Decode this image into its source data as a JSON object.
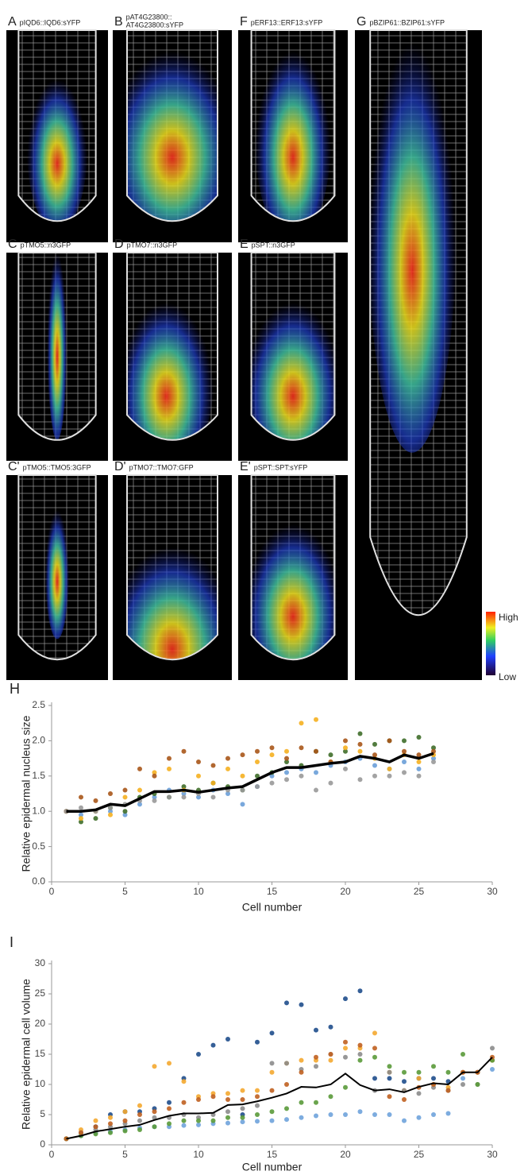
{
  "panels": [
    {
      "letter": "A",
      "caption": [
        "pIQD6::IQD6:sYFP"
      ]
    },
    {
      "letter": "B",
      "caption": [
        "pAT4G23800::",
        "AT4G23800:sYFP"
      ]
    },
    {
      "letter": "F",
      "caption": [
        "pERF13::ERF13:sYFP"
      ]
    },
    {
      "letter": "G",
      "caption": [
        "pBZIP61::BZIP61:sYFP"
      ]
    },
    {
      "letter": "C",
      "caption": [
        "pTMO5::n3GFP"
      ]
    },
    {
      "letter": "D",
      "caption": [
        "pTMO7::n3GFP"
      ]
    },
    {
      "letter": "E",
      "caption": [
        "pSPT::n3GFP"
      ]
    },
    {
      "letter": "C'",
      "caption": [
        "pTMO5::TMO5:3GFP"
      ]
    },
    {
      "letter": "D'",
      "caption": [
        "pTMO7::TMO7:GFP"
      ]
    },
    {
      "letter": "E'",
      "caption": [
        "pSPT::SPT:sYFP"
      ]
    }
  ],
  "colorbar": {
    "high": "High",
    "low": "Low"
  },
  "chart_data": [
    {
      "type": "scatter",
      "label": "H",
      "xlabel": "Cell number",
      "ylabel": "Relative epidermal nucleus size",
      "xlim": [
        0,
        30
      ],
      "ylim": [
        0,
        2.5
      ],
      "xticks": [
        0,
        5,
        10,
        15,
        20,
        25,
        30
      ],
      "yticks": [
        {
          "value": 0,
          "label": "0.0"
        },
        0.5,
        {
          "value": 1,
          "label": "1.0"
        },
        1.5,
        {
          "value": 2,
          "label": "2.0"
        },
        2.5
      ],
      "series": [
        {
          "color": "#6a9fd8",
          "x": [
            1,
            2,
            3,
            4,
            5,
            6,
            7,
            8,
            9,
            10,
            11,
            12,
            13,
            14,
            15,
            16,
            17,
            18,
            19,
            20,
            21,
            22,
            23,
            24,
            25,
            26
          ],
          "values": [
            1.0,
            0.95,
            1.0,
            1.0,
            0.95,
            1.1,
            1.2,
            1.3,
            1.25,
            1.2,
            1.3,
            1.25,
            1.1,
            1.35,
            1.5,
            1.55,
            1.6,
            1.55,
            1.65,
            1.7,
            1.75,
            1.65,
            1.6,
            1.7,
            1.6,
            1.75
          ]
        },
        {
          "color": "#3f6e2a",
          "x": [
            1,
            2,
            3,
            4,
            5,
            6,
            7,
            8,
            9,
            10,
            11,
            12,
            13,
            14,
            15,
            16,
            17,
            18,
            19,
            20,
            21,
            22,
            23,
            24,
            25,
            26
          ],
          "values": [
            1.0,
            0.85,
            0.9,
            1.05,
            1.0,
            1.2,
            1.25,
            1.2,
            1.35,
            1.3,
            1.4,
            1.35,
            1.3,
            1.5,
            1.55,
            1.7,
            1.65,
            1.85,
            1.8,
            1.85,
            2.1,
            1.95,
            2.0,
            2.0,
            2.05,
            1.9
          ]
        },
        {
          "color": "#f5b020",
          "x": [
            1,
            2,
            3,
            4,
            5,
            6,
            7,
            8,
            9,
            10,
            11,
            12,
            13,
            14,
            15,
            16,
            17,
            18,
            19,
            20,
            21,
            22,
            23,
            24,
            25,
            26
          ],
          "values": [
            1.0,
            0.9,
            1.0,
            0.95,
            1.2,
            1.3,
            1.55,
            1.6,
            1.3,
            1.5,
            1.4,
            1.6,
            1.5,
            1.7,
            1.8,
            1.85,
            2.25,
            2.3,
            1.7,
            1.9,
            1.85,
            1.75,
            1.6,
            1.8,
            1.7,
            1.8
          ]
        },
        {
          "color": "#a8561a",
          "x": [
            1,
            2,
            3,
            4,
            5,
            6,
            7,
            8,
            9,
            10,
            11,
            12,
            13,
            14,
            15,
            16,
            17,
            18,
            19,
            20,
            21,
            22,
            23,
            24,
            25,
            26
          ],
          "values": [
            1.0,
            1.2,
            1.15,
            1.25,
            1.3,
            1.6,
            1.5,
            1.75,
            1.85,
            1.7,
            1.65,
            1.75,
            1.8,
            1.85,
            1.9,
            1.75,
            1.9,
            1.85,
            1.7,
            2.0,
            1.95,
            1.8,
            2.0,
            1.85,
            1.8,
            1.85
          ]
        },
        {
          "color": "#999999",
          "x": [
            1,
            2,
            3,
            4,
            5,
            6,
            7,
            8,
            9,
            10,
            11,
            12,
            13,
            14,
            15,
            16,
            17,
            18,
            19,
            20,
            21,
            22,
            23,
            24,
            25,
            26
          ],
          "values": [
            1.0,
            1.05,
            1.0,
            1.05,
            1.1,
            1.15,
            1.15,
            1.2,
            1.2,
            1.25,
            1.2,
            1.3,
            1.3,
            1.35,
            1.4,
            1.45,
            1.5,
            1.3,
            1.4,
            1.6,
            1.45,
            1.5,
            1.5,
            1.55,
            1.5,
            1.7
          ]
        }
      ],
      "mean": {
        "color": "#000000",
        "x": [
          1,
          2,
          3,
          4,
          5,
          6,
          7,
          8,
          9,
          10,
          11,
          12,
          13,
          14,
          15,
          16,
          17,
          18,
          19,
          20,
          21,
          22,
          23,
          24,
          25,
          26
        ],
        "values": [
          1.0,
          1.0,
          1.02,
          1.1,
          1.08,
          1.18,
          1.28,
          1.28,
          1.3,
          1.27,
          1.3,
          1.33,
          1.35,
          1.45,
          1.55,
          1.62,
          1.62,
          1.65,
          1.68,
          1.7,
          1.78,
          1.75,
          1.7,
          1.8,
          1.75,
          1.82
        ]
      }
    },
    {
      "type": "scatter",
      "label": "I",
      "xlabel": "Cell number",
      "ylabel": "Relative epidermal cell volume",
      "xlim": [
        0,
        30
      ],
      "ylim": [
        0,
        30
      ],
      "xticks": [
        0,
        5,
        10,
        15,
        20,
        25,
        30
      ],
      "yticks": [
        0,
        5,
        10,
        15,
        20,
        25,
        30
      ],
      "series": [
        {
          "color": "#1f4e8c",
          "x": [
            1,
            2,
            3,
            4,
            5,
            6,
            7,
            8,
            9,
            10,
            11,
            12,
            13,
            14,
            15,
            16,
            17,
            18,
            19,
            20,
            21,
            22,
            23,
            24,
            25,
            26,
            27,
            28,
            29,
            30
          ],
          "values": [
            1,
            2,
            3,
            5,
            5.5,
            5.5,
            6,
            7,
            11,
            15,
            16.5,
            17.5,
            5,
            17,
            18.5,
            23.5,
            23.2,
            19,
            19.5,
            24.2,
            25.5,
            11,
            11,
            10.5,
            11,
            11,
            10.5,
            12,
            12,
            14
          ]
        },
        {
          "color": "#6fa3dc",
          "x": [
            1,
            2,
            3,
            4,
            5,
            6,
            7,
            8,
            9,
            10,
            11,
            12,
            13,
            14,
            15,
            16,
            17,
            18,
            19,
            20,
            21,
            22,
            23,
            24,
            25,
            26,
            27,
            28,
            29,
            30
          ],
          "values": [
            1,
            1.5,
            2,
            2.2,
            2.5,
            2.8,
            3,
            3,
            3.2,
            3.3,
            3.5,
            3.6,
            3.8,
            3.9,
            4,
            4.2,
            4.5,
            4.8,
            5,
            5,
            5.5,
            5,
            5,
            4,
            4.5,
            5,
            5.2,
            11,
            12,
            12.5
          ]
        },
        {
          "color": "#f4a830",
          "x": [
            1,
            2,
            3,
            4,
            5,
            6,
            7,
            8,
            9,
            10,
            11,
            12,
            13,
            14,
            15,
            16,
            17,
            18,
            19,
            20,
            21,
            22,
            23,
            24,
            25,
            26,
            27,
            28,
            29,
            30
          ],
          "values": [
            1,
            2.5,
            4,
            4.5,
            5.5,
            6.5,
            13,
            13.5,
            10.5,
            8,
            8.5,
            8.5,
            9,
            9,
            12,
            13.5,
            14,
            14,
            14,
            16,
            16,
            18.5,
            12,
            9,
            11,
            10,
            9.5,
            12,
            12,
            14
          ]
        },
        {
          "color": "#8c8c8c",
          "x": [
            1,
            2,
            3,
            4,
            5,
            6,
            7,
            8,
            9,
            10,
            11,
            12,
            13,
            14,
            15,
            16,
            17,
            18,
            19,
            20,
            21,
            22,
            23,
            24,
            25,
            26,
            27,
            28,
            29,
            30
          ],
          "values": [
            1,
            2,
            2.5,
            3,
            3.5,
            4,
            4.5,
            4.5,
            5,
            4.5,
            5,
            5.5,
            6,
            6.5,
            13.5,
            13.5,
            12.5,
            13,
            15,
            14.5,
            15,
            9,
            12,
            9,
            8.5,
            9.5,
            9,
            10,
            10,
            16
          ]
        },
        {
          "color": "#5a9a3a",
          "x": [
            1,
            2,
            3,
            4,
            5,
            6,
            7,
            8,
            9,
            10,
            11,
            12,
            13,
            14,
            15,
            16,
            17,
            18,
            19,
            20,
            21,
            22,
            23,
            24,
            25,
            26,
            27,
            28,
            29,
            30
          ],
          "values": [
            1,
            1.5,
            1.8,
            2,
            2.3,
            2.5,
            3,
            3.5,
            4,
            4,
            4,
            4.5,
            4.5,
            5,
            5.5,
            6,
            7,
            7,
            8,
            9.5,
            14,
            14.5,
            13,
            12,
            12,
            13,
            12,
            15,
            10,
            14
          ]
        },
        {
          "color": "#c06020",
          "x": [
            1,
            2,
            3,
            4,
            5,
            6,
            7,
            8,
            9,
            10,
            11,
            12,
            13,
            14,
            15,
            16,
            17,
            18,
            19,
            20,
            21,
            22,
            23,
            24,
            25,
            26,
            27,
            28,
            29,
            30
          ],
          "values": [
            1,
            2,
            3,
            3.5,
            4,
            5,
            5.5,
            6,
            7,
            7.5,
            8,
            7.5,
            7.5,
            8,
            9,
            10,
            12,
            14.5,
            15,
            17,
            16.5,
            16,
            8,
            7.5,
            9.5,
            10,
            9,
            12,
            12,
            14.5
          ]
        }
      ],
      "mean": {
        "color": "#000000",
        "x": [
          1,
          2,
          3,
          4,
          5,
          6,
          7,
          8,
          9,
          10,
          11,
          12,
          13,
          14,
          15,
          16,
          17,
          18,
          19,
          20,
          21,
          22,
          23,
          24,
          25,
          26,
          27,
          28,
          29,
          30
        ],
        "values": [
          1,
          1.5,
          2.2,
          2.6,
          3,
          3.3,
          4.1,
          4.8,
          5.2,
          5.2,
          5.3,
          6.6,
          6.7,
          7.2,
          7.8,
          8.5,
          9.6,
          9.5,
          10,
          11.8,
          9.9,
          9,
          9.2,
          8.7,
          9.6,
          10.2,
          10,
          12,
          12,
          14.5
        ]
      }
    }
  ]
}
